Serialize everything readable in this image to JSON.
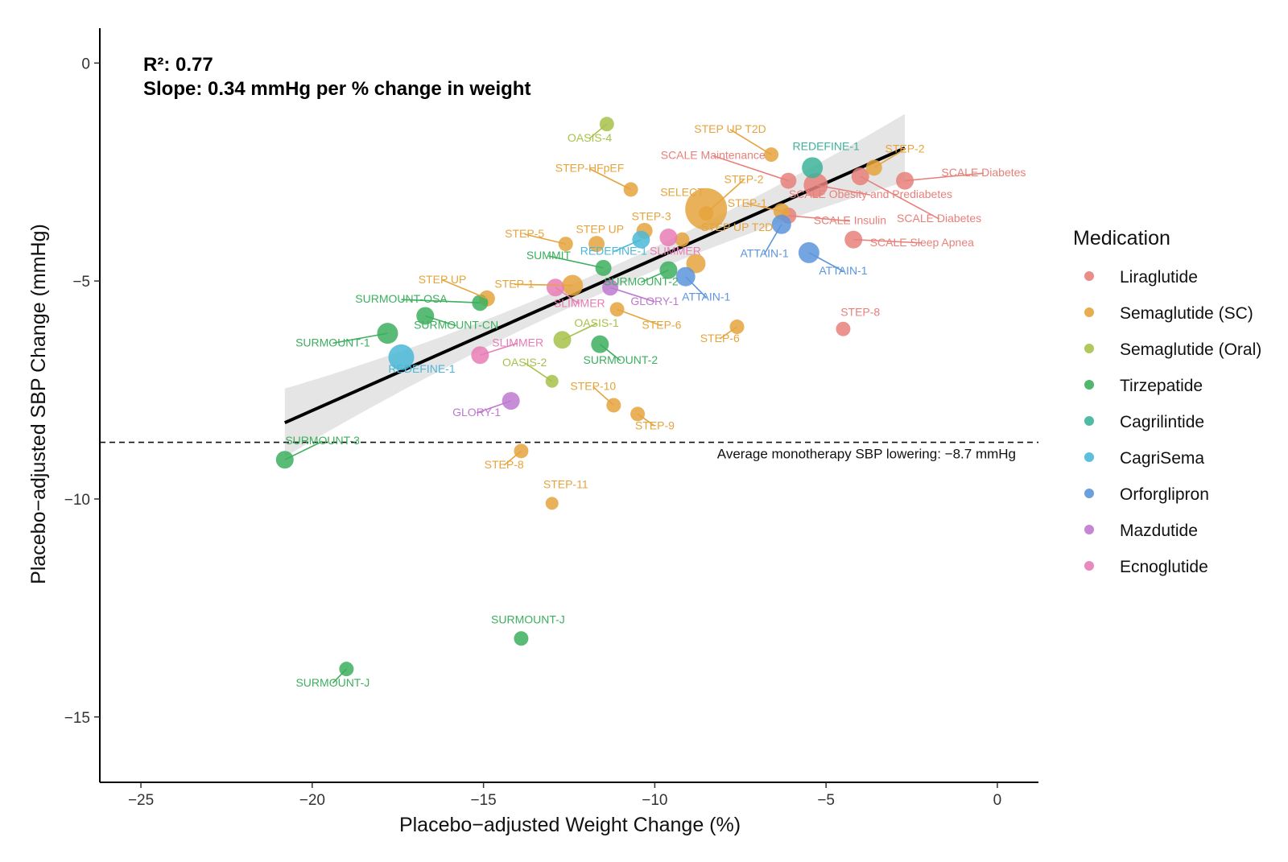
{
  "chart_data": {
    "type": "scatter",
    "title": "",
    "xlabel": "Placebo−adjusted Weight Change (%)",
    "ylabel": "Placebo−adjusted SBP Change (mmHg)",
    "xlim": [
      -26.2,
      1.2
    ],
    "ylim": [
      -16.5,
      0.8
    ],
    "x_ticks": [
      -25,
      -20,
      -15,
      -10,
      -5,
      0
    ],
    "x_tick_labels": [
      "−25",
      "−20",
      "−15",
      "−10",
      "−5",
      "0"
    ],
    "y_ticks": [
      0,
      -5,
      -10,
      -15
    ],
    "y_tick_labels": [
      "0",
      "−5",
      "−10",
      "−15"
    ],
    "grid": false,
    "stats": {
      "r2": "R²: 0.77",
      "slope": "Slope: 0.34 mmHg per % change in weight"
    },
    "regression": {
      "x": [
        -20.8,
        -2.7
      ],
      "y": [
        -8.25,
        -1.95
      ],
      "ci": true
    },
    "reference_line": {
      "y": -8.7,
      "label": "Average monotherapy SBP lowering: −8.7 mmHg"
    },
    "legend": {
      "title": "Medication",
      "position": "right",
      "entries": [
        {
          "name": "Liraglutide",
          "color": "#E8807A"
        },
        {
          "name": "Semaglutide (SC)",
          "color": "#E5A43D"
        },
        {
          "name": "Semaglutide (Oral)",
          "color": "#A7C24A"
        },
        {
          "name": "Tirzepatide",
          "color": "#3DAF5E"
        },
        {
          "name": "Cagrilintide",
          "color": "#3CB49A"
        },
        {
          "name": "CagriSema",
          "color": "#4BB8D8"
        },
        {
          "name": "Orforglipron",
          "color": "#5D95DC"
        },
        {
          "name": "Mazdutide",
          "color": "#BE79D0"
        },
        {
          "name": "Ecnoglutide",
          "color": "#E77DB5"
        }
      ]
    },
    "points": [
      {
        "label": "SCALE Maintenance",
        "med": "Liraglutide",
        "x": -6.1,
        "y": -2.7,
        "size": 6,
        "lx": -8.3,
        "ly": -2.2,
        "anchor": "middle"
      },
      {
        "label": "SCALE Obesity and Prediabetes",
        "med": "Liraglutide",
        "x": -5.3,
        "y": -2.8,
        "size": 11,
        "lx": -3.7,
        "ly": -3.1,
        "anchor": "middle"
      },
      {
        "label": "SCALE Diabetes",
        "med": "Liraglutide",
        "x": -2.7,
        "y": -2.7,
        "size": 7,
        "lx": -0.4,
        "ly": -2.6,
        "anchor": "middle"
      },
      {
        "label": "SCALE Diabetes",
        "med": "Liraglutide",
        "x": -4.0,
        "y": -2.6,
        "size": 7,
        "lx": -1.7,
        "ly": -3.65,
        "anchor": "middle"
      },
      {
        "label": "SCALE Insulin",
        "med": "Liraglutide",
        "x": -6.1,
        "y": -3.5,
        "size": 6,
        "lx": -4.3,
        "ly": -3.7,
        "anchor": "middle"
      },
      {
        "label": "SCALE Sleep Apnea",
        "med": "Liraglutide",
        "x": -4.2,
        "y": -4.05,
        "size": 7,
        "lx": -2.2,
        "ly": -4.2,
        "anchor": "middle"
      },
      {
        "label": "STEP-8",
        "med": "Liraglutide",
        "x": -4.5,
        "y": -6.1,
        "size": 5,
        "lx": -4.0,
        "ly": -5.8,
        "anchor": "middle"
      },
      {
        "label": "STEP UP T2D",
        "med": "Semaglutide (SC)",
        "x": -6.6,
        "y": -2.1,
        "size": 5,
        "lx": -7.8,
        "ly": -1.6,
        "anchor": "middle"
      },
      {
        "label": "STEP-2",
        "med": "Semaglutide (SC)",
        "x": -3.6,
        "y": -2.4,
        "size": 6,
        "lx": -2.7,
        "ly": -2.05,
        "anchor": "middle"
      },
      {
        "label": "STEP-HFpEF",
        "med": "Semaglutide (SC)",
        "x": -10.7,
        "y": -2.9,
        "size": 5,
        "lx": -11.9,
        "ly": -2.5,
        "anchor": "middle"
      },
      {
        "label": "SELECT",
        "med": "Semaglutide (SC)",
        "x": -8.5,
        "y": -3.35,
        "size": 22,
        "lx": -9.2,
        "ly": -3.05,
        "anchor": "middle"
      },
      {
        "label": "STEP-2",
        "med": "Semaglutide (SC)",
        "x": -8.5,
        "y": -3.45,
        "size": 5,
        "lx": -7.4,
        "ly": -2.75,
        "anchor": "middle"
      },
      {
        "label": "STEP-1",
        "med": "Semaglutide (SC)",
        "x": -6.3,
        "y": -3.4,
        "size": 6,
        "lx": -7.3,
        "ly": -3.3,
        "anchor": "middle"
      },
      {
        "label": "STEP UP T2D",
        "med": "Semaglutide (SC)",
        "x": -6.7,
        "y": -3.85,
        "size": 0,
        "lx": -7.6,
        "ly": -3.85,
        "anchor": "middle"
      },
      {
        "label": "STEP-3",
        "med": "Semaglutide (SC)",
        "x": -10.3,
        "y": -3.85,
        "size": 6,
        "lx": -10.1,
        "ly": -3.6,
        "anchor": "middle"
      },
      {
        "label": "STEP UP",
        "med": "Semaglutide (SC)",
        "x": -11.7,
        "y": -4.15,
        "size": 6,
        "lx": -11.6,
        "ly": -3.9,
        "anchor": "middle"
      },
      {
        "label": "STEP-5",
        "med": "Semaglutide (SC)",
        "x": -12.6,
        "y": -4.15,
        "size": 5,
        "lx": -13.8,
        "ly": -4.0,
        "anchor": "middle"
      },
      {
        "label": "",
        "med": "Semaglutide (SC)",
        "x": -9.2,
        "y": -4.05,
        "size": 5,
        "lx": 0,
        "ly": 0,
        "anchor": "middle"
      },
      {
        "label": "",
        "med": "Semaglutide (SC)",
        "x": -8.8,
        "y": -4.6,
        "size": 8,
        "lx": 0,
        "ly": 0,
        "anchor": "middle"
      },
      {
        "label": "STEP UP",
        "med": "Semaglutide (SC)",
        "x": -14.9,
        "y": -5.4,
        "size": 6,
        "lx": -16.2,
        "ly": -5.05,
        "anchor": "middle"
      },
      {
        "label": "STEP-1",
        "med": "Semaglutide (SC)",
        "x": -12.4,
        "y": -5.1,
        "size": 9,
        "lx": -14.1,
        "ly": -5.15,
        "anchor": "middle"
      },
      {
        "label": "STEP-6",
        "med": "Semaglutide (SC)",
        "x": -11.1,
        "y": -5.65,
        "size": 5,
        "lx": -9.8,
        "ly": -6.1,
        "anchor": "middle"
      },
      {
        "label": "STEP-6",
        "med": "Semaglutide (SC)",
        "x": -7.6,
        "y": -6.05,
        "size": 5,
        "lx": -8.1,
        "ly": -6.4,
        "anchor": "middle"
      },
      {
        "label": "STEP-10",
        "med": "Semaglutide (SC)",
        "x": -11.2,
        "y": -7.85,
        "size": 5,
        "lx": -11.8,
        "ly": -7.5,
        "anchor": "middle"
      },
      {
        "label": "STEP-9",
        "med": "Semaglutide (SC)",
        "x": -10.5,
        "y": -8.05,
        "size": 5,
        "lx": -10.0,
        "ly": -8.4,
        "anchor": "middle"
      },
      {
        "label": "STEP-8",
        "med": "Semaglutide (SC)",
        "x": -13.9,
        "y": -8.9,
        "size": 5,
        "lx": -14.4,
        "ly": -9.3,
        "anchor": "middle"
      },
      {
        "label": "STEP-11",
        "med": "Semaglutide (SC)",
        "x": -13.0,
        "y": -10.1,
        "size": 4,
        "lx": -12.6,
        "ly": -9.75,
        "anchor": "middle"
      },
      {
        "label": "OASIS-4",
        "med": "Semaglutide (Oral)",
        "x": -11.4,
        "y": -1.4,
        "size": 5,
        "lx": -11.9,
        "ly": -1.8,
        "anchor": "middle"
      },
      {
        "label": "OASIS-1",
        "med": "Semaglutide (Oral)",
        "x": -12.7,
        "y": -6.35,
        "size": 7,
        "lx": -11.7,
        "ly": -6.05,
        "anchor": "middle"
      },
      {
        "label": "OASIS-2",
        "med": "Semaglutide (Oral)",
        "x": -13.0,
        "y": -7.3,
        "size": 4,
        "lx": -13.8,
        "ly": -6.95,
        "anchor": "middle"
      },
      {
        "label": "SUMMIT",
        "med": "Tirzepatide",
        "x": -11.5,
        "y": -4.7,
        "size": 6,
        "lx": -13.1,
        "ly": -4.5,
        "anchor": "middle"
      },
      {
        "label": "SURMOUNT-2",
        "med": "Tirzepatide",
        "x": -9.6,
        "y": -4.75,
        "size": 7,
        "lx": -10.4,
        "ly": -5.1,
        "anchor": "middle"
      },
      {
        "label": "SURMOUNT-OSA",
        "med": "Tirzepatide",
        "x": -15.1,
        "y": -5.5,
        "size": 6,
        "lx": -17.4,
        "ly": -5.5,
        "anchor": "middle"
      },
      {
        "label": "SURMOUNT-CN",
        "med": "Tirzepatide",
        "x": -16.7,
        "y": -5.8,
        "size": 7,
        "lx": -15.8,
        "ly": -6.1,
        "anchor": "middle"
      },
      {
        "label": "SURMOUNT-1",
        "med": "Tirzepatide",
        "x": -17.8,
        "y": -6.2,
        "size": 9,
        "lx": -19.4,
        "ly": -6.5,
        "anchor": "middle"
      },
      {
        "label": "SURMOUNT-2",
        "med": "Tirzepatide",
        "x": -11.6,
        "y": -6.45,
        "size": 7,
        "lx": -11.0,
        "ly": -6.9,
        "anchor": "middle"
      },
      {
        "label": "SURMOUNT-3",
        "med": "Tirzepatide",
        "x": -20.8,
        "y": -9.1,
        "size": 7,
        "lx": -19.7,
        "ly": -8.75,
        "anchor": "middle"
      },
      {
        "label": "SURMOUNT-J",
        "med": "Tirzepatide",
        "x": -13.9,
        "y": -13.2,
        "size": 5,
        "lx": -13.7,
        "ly": -12.85,
        "anchor": "middle"
      },
      {
        "label": "SURMOUNT-J",
        "med": "Tirzepatide",
        "x": -19.0,
        "y": -13.9,
        "size": 5,
        "lx": -19.4,
        "ly": -14.3,
        "anchor": "middle"
      },
      {
        "label": "REDEFINE-1",
        "med": "Cagrilintide",
        "x": -5.4,
        "y": -2.4,
        "size": 9,
        "lx": -5.0,
        "ly": -2.0,
        "anchor": "middle"
      },
      {
        "label": "REDEFINE-1",
        "med": "CagriSema",
        "x": -10.4,
        "y": -4.05,
        "size": 7,
        "lx": -11.2,
        "ly": -4.4,
        "anchor": "middle"
      },
      {
        "label": "REDEFINE-1",
        "med": "CagriSema",
        "x": -17.4,
        "y": -6.75,
        "size": 12,
        "lx": -16.8,
        "ly": -7.1,
        "anchor": "middle"
      },
      {
        "label": "ATTAIN-1",
        "med": "Orforglipron",
        "x": -6.3,
        "y": -3.7,
        "size": 8,
        "lx": -6.8,
        "ly": -4.45,
        "anchor": "middle"
      },
      {
        "label": "ATTAIN-1",
        "med": "Orforglipron",
        "x": -5.5,
        "y": -4.35,
        "size": 9,
        "lx": -4.5,
        "ly": -4.85,
        "anchor": "middle"
      },
      {
        "label": "ATTAIN-1",
        "med": "Orforglipron",
        "x": -9.1,
        "y": -4.9,
        "size": 8,
        "lx": -8.5,
        "ly": -5.45,
        "anchor": "middle"
      },
      {
        "label": "GLORY-1",
        "med": "Mazdutide",
        "x": -11.3,
        "y": -5.15,
        "size": 6,
        "lx": -10.0,
        "ly": -5.55,
        "anchor": "middle"
      },
      {
        "label": "GLORY-1",
        "med": "Mazdutide",
        "x": -14.2,
        "y": -7.75,
        "size": 7,
        "lx": -15.2,
        "ly": -8.1,
        "anchor": "middle"
      },
      {
        "label": "SLIMMER",
        "med": "Ecnoglutide",
        "x": -9.6,
        "y": -4.0,
        "size": 7,
        "lx": -9.4,
        "ly": -4.4,
        "anchor": "middle"
      },
      {
        "label": "SLIMMER",
        "med": "Ecnoglutide",
        "x": -12.9,
        "y": -5.15,
        "size": 7,
        "lx": -12.2,
        "ly": -5.6,
        "anchor": "middle"
      },
      {
        "label": "SLIMMER",
        "med": "Ecnoglutide",
        "x": -15.1,
        "y": -6.7,
        "size": 7,
        "lx": -14.0,
        "ly": -6.5,
        "anchor": "middle"
      }
    ]
  }
}
